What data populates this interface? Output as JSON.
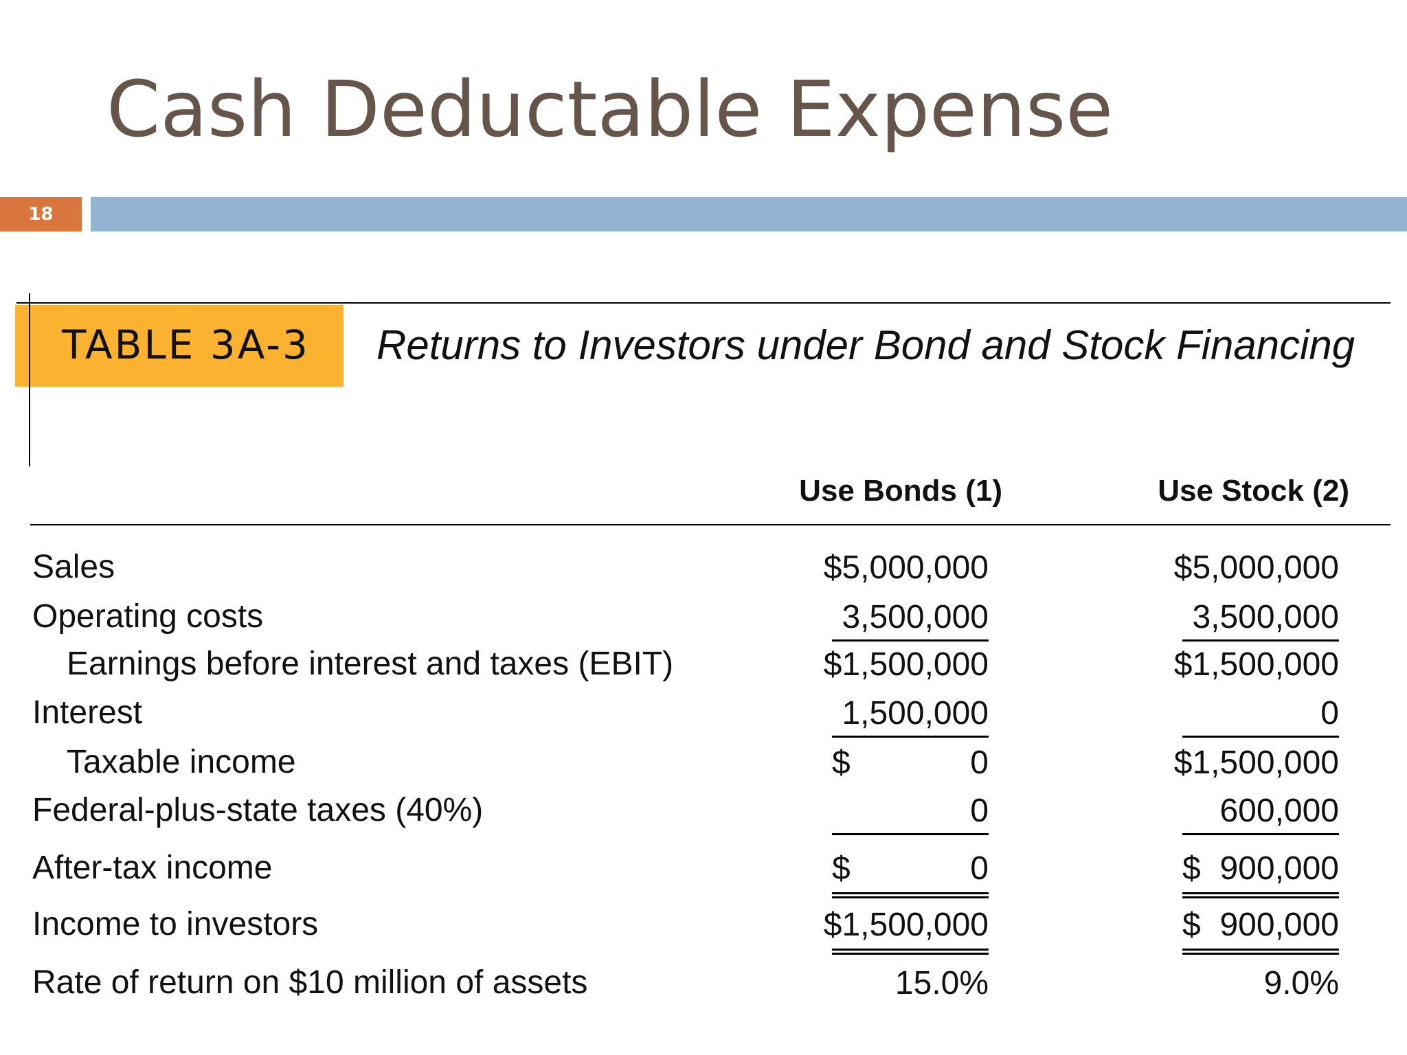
{
  "slide": {
    "title": "Cash Deductable Expense",
    "number": "18"
  },
  "table": {
    "label": "TABLE 3A-3",
    "caption": "Returns to Investors under Bond and Stock Financing",
    "columns": [
      "Use Bonds (1)",
      "Use Stock (2)"
    ],
    "rows": [
      {
        "label": "Sales",
        "cells": [
          "$5,000,000",
          "$5,000,000"
        ]
      },
      {
        "label": "Operating costs",
        "cells": [
          "3,500,000",
          "3,500,000"
        ]
      },
      {
        "label": "Earnings before interest and taxes (EBIT)",
        "indent": true,
        "cells": [
          "$1,500,000",
          "$1,500,000"
        ]
      },
      {
        "label": "Interest",
        "cells": [
          "1,500,000",
          "0"
        ]
      },
      {
        "label": "Taxable income",
        "indent": true,
        "cells": [
          [
            "$",
            "0"
          ],
          "$1,500,000"
        ]
      },
      {
        "label": "Federal-plus-state taxes (40%)",
        "cells": [
          "0",
          "600,000"
        ]
      },
      {
        "label": "After-tax income",
        "cells": [
          [
            "$",
            "0"
          ],
          [
            "$",
            "900,000"
          ]
        ]
      },
      {
        "label": "Income to investors",
        "cells": [
          "$1,500,000",
          [
            "$",
            "900,000"
          ]
        ]
      },
      {
        "label": "Rate of return on $10 million of assets",
        "cells": [
          "15.0%",
          "9.0%"
        ]
      }
    ]
  }
}
